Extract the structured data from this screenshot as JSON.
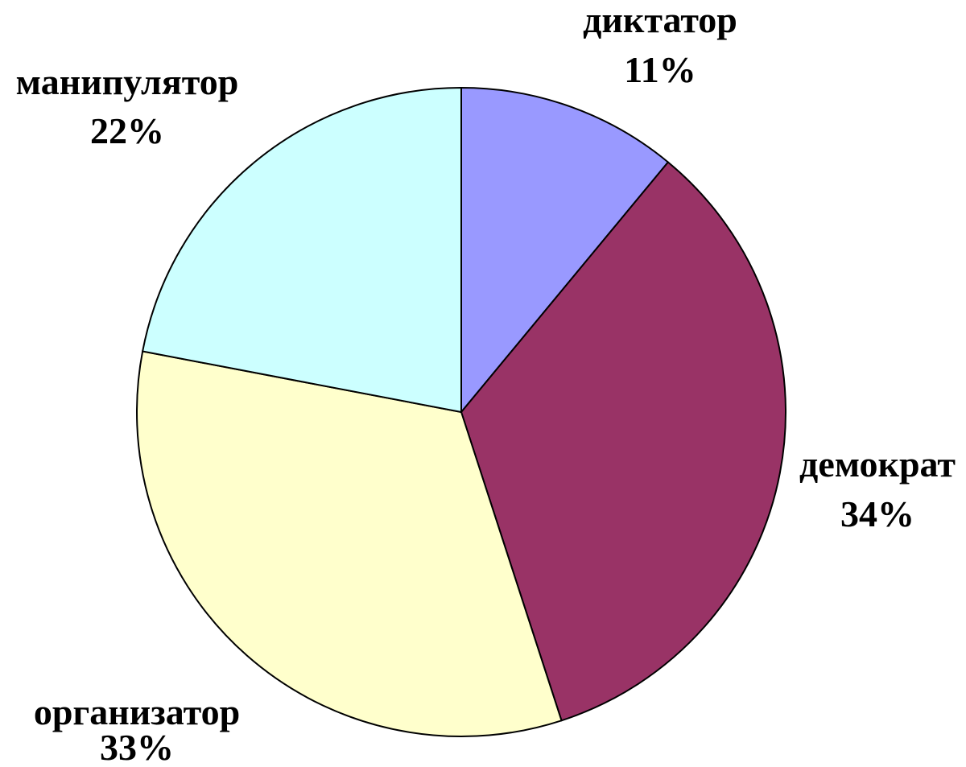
{
  "chart_data": {
    "type": "pie",
    "title": "",
    "slices": [
      {
        "label": "диктатор",
        "value": 11,
        "value_label": "11%",
        "color": "#9999ff"
      },
      {
        "label": "демократ",
        "value": 34,
        "value_label": "34%",
        "color": "#993366"
      },
      {
        "label": "организатор",
        "value": 33,
        "value_label": "33%",
        "color": "#ffffcc"
      },
      {
        "label": "манипулятор",
        "value": 22,
        "value_label": "22%",
        "color": "#ccffff"
      }
    ],
    "start_angle": "12 o'clock",
    "direction": "clockwise",
    "legend": "none"
  }
}
